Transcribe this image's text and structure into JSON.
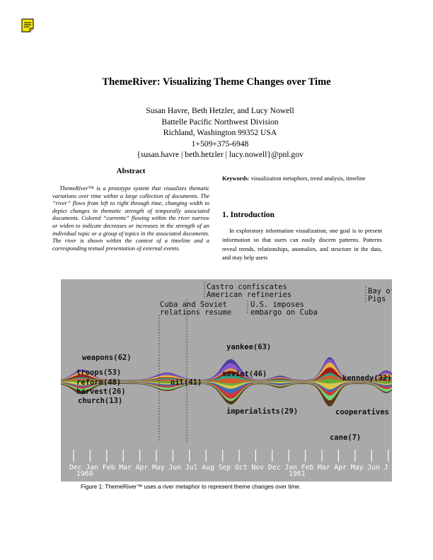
{
  "title": "ThemeRiver: Visualizing Theme Changes over Time",
  "authors": {
    "names": "Susan Havre, Beth Hetzler, and Lucy Nowell",
    "affiliation": "Battelle Pacific Northwest Division",
    "location": "Richland, Washington 99352  USA",
    "phone": "1+509+375-6948",
    "email": "{susan.havre | beth.hetzler | lucy.nowell}@pnl.gov"
  },
  "abstract": {
    "heading": "Abstract",
    "text": "ThemeRiver™ is a prototype system that visualizes thematic variations over time within a large collection of documents. The “river” flows from left to right through time, changing width to depict changes in thematic strength of temporally associated documents. Colored “currents” flowing within the river narrow or widen to indicate decreases or increases in the strength of an individual topic or a group of topics in the associated documents. The river is shown within the context of a timeline and a corresponding textual presentation of external events."
  },
  "keywords": {
    "label": "Keywords",
    "text": ": visualization metaphors, trend analysis, timeline"
  },
  "introduction": {
    "heading": "1. Introduction",
    "text": "In exploratory information visualization, one goal is to present information so that users can easily discern patterns. Patterns reveal trends, relationships, anomalies, and structure in the data, and may help users"
  },
  "figure": {
    "events": [
      "Castro confiscates",
      "American refineries",
      "Cuba and Soviet",
      "relations resume",
      "U.S. imposes",
      "embargo on Cuba",
      "Bay of",
      "Pigs"
    ],
    "theme_labels": [
      "weapons(62)",
      "troops(53)",
      "reform(48)",
      "harvest(26)",
      "church(13)",
      "oil(41)",
      "yankee(63)",
      "soviet(46)",
      "imperialists(29)",
      "kennedy(32)",
      "cooperatives",
      "cane(7)"
    ],
    "months": [
      "Dec",
      "Jan",
      "Feb",
      "Mar",
      "Apr",
      "May",
      "Jun",
      "Jul",
      "Aug",
      "Sep",
      "Oct",
      "Nov",
      "Dec",
      "Jan",
      "Feb",
      "Mar",
      "Apr",
      "May",
      "Jun",
      "J"
    ],
    "years": [
      "1960",
      "1961"
    ],
    "background_color": "#a9a9a9",
    "stream_colors": [
      "#4a3ea0",
      "#8a58c8",
      "#e8b23a",
      "#9a1f1a",
      "#2aa08a",
      "#d45a2a",
      "#6aa83a",
      "#d8c848",
      "#3a6ab8",
      "#c8383a",
      "#76d07a",
      "#5a3a1a"
    ]
  },
  "caption": "Figure 1: ThemeRiver™ uses a river metaphor to represent theme changes over time."
}
